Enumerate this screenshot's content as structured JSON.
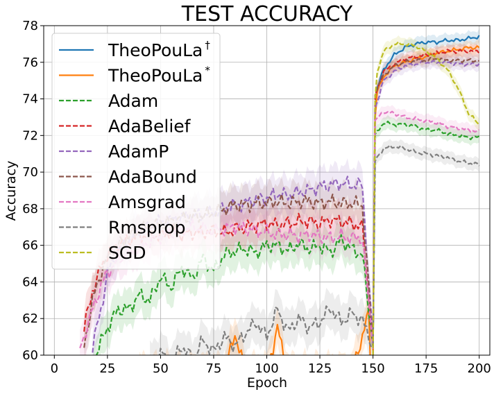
{
  "chart_data": {
    "type": "line",
    "title": "TEST ACCURACY",
    "xlabel": "Epoch",
    "ylabel": "Accuracy",
    "xlim": [
      -5,
      205
    ],
    "ylim": [
      60,
      78
    ],
    "xticks": [
      0,
      25,
      50,
      75,
      100,
      125,
      150,
      175,
      200
    ],
    "yticks": [
      60,
      62,
      64,
      66,
      68,
      70,
      72,
      74,
      76,
      78
    ],
    "grid": true,
    "legend_position": "upper-left",
    "series": [
      {
        "name": "TheoPouLa",
        "sup": "†",
        "color": "#1f77b4",
        "dash": "solid",
        "x": [
          150,
          151,
          152,
          155,
          160,
          165,
          170,
          175,
          180,
          185,
          190,
          195,
          200
        ],
        "y": [
          60,
          73.2,
          74.6,
          75.6,
          76.4,
          76.8,
          77.0,
          77.1,
          77.1,
          77.2,
          77.2,
          77.3,
          77.4
        ]
      },
      {
        "name": "TheoPouLa",
        "sup": "*",
        "color": "#ff7f0e",
        "dash": "solid",
        "x": [
          40,
          50,
          60,
          70,
          80,
          85,
          90,
          100,
          105,
          110,
          120,
          130,
          140,
          148,
          149,
          150,
          151,
          152,
          155,
          160,
          165,
          170,
          175,
          180,
          185,
          190,
          195,
          200
        ],
        "y": [
          59,
          59,
          59,
          59,
          59,
          61.2,
          59,
          59,
          61.5,
          59,
          59,
          59,
          59,
          62.3,
          59,
          60,
          73.0,
          74.4,
          75.2,
          75.8,
          76.0,
          76.2,
          76.3,
          76.5,
          76.6,
          76.7,
          76.8,
          76.8
        ]
      },
      {
        "name": "Adam",
        "sup": "",
        "color": "#2ca02c",
        "dash": "dashed",
        "x": [
          18,
          20,
          25,
          30,
          35,
          40,
          45,
          50,
          55,
          60,
          65,
          70,
          75,
          80,
          85,
          90,
          95,
          100,
          105,
          110,
          115,
          120,
          125,
          130,
          135,
          140,
          145,
          150,
          151,
          155,
          160,
          165,
          170,
          175,
          180,
          185,
          190,
          195,
          200
        ],
        "y": [
          59,
          60.2,
          61.5,
          62.5,
          62.5,
          63.3,
          63.0,
          64.3,
          63.7,
          64.8,
          64.2,
          65.3,
          64.6,
          65.5,
          65.7,
          65.8,
          65.6,
          66.0,
          66.0,
          65.7,
          66.1,
          65.8,
          66.0,
          65.6,
          66.3,
          65.8,
          65.5,
          60.5,
          72.0,
          72.7,
          72.6,
          72.6,
          72.5,
          72.3,
          72.3,
          72.1,
          72.0,
          71.9,
          71.9
        ]
      },
      {
        "name": "AdaBelief",
        "sup": "",
        "color": "#d62728",
        "dash": "dashed",
        "x": [
          14,
          18,
          22,
          25,
          30,
          35,
          40,
          45,
          50,
          55,
          60,
          65,
          70,
          75,
          80,
          85,
          90,
          95,
          100,
          105,
          110,
          115,
          120,
          125,
          130,
          135,
          140,
          145,
          150,
          151,
          155,
          160,
          165,
          170,
          175,
          180,
          185,
          190,
          195,
          200
        ],
        "y": [
          61.5,
          63.5,
          64.8,
          65.5,
          66.0,
          66.3,
          66.5,
          66.6,
          66.5,
          66.8,
          66.6,
          66.7,
          66.7,
          66.8,
          66.7,
          66.9,
          67.0,
          67.1,
          67.2,
          67.1,
          67.2,
          67.3,
          67.3,
          67.2,
          67.4,
          67.3,
          67.2,
          67.0,
          60.5,
          74.2,
          75.5,
          75.9,
          76.2,
          76.3,
          76.4,
          76.5,
          76.6,
          76.6,
          76.6,
          76.6
        ]
      },
      {
        "name": "AdamP",
        "sup": "",
        "color": "#9467bd",
        "dash": "dashed",
        "x": [
          18,
          22,
          25,
          30,
          35,
          40,
          45,
          50,
          55,
          60,
          65,
          70,
          75,
          80,
          85,
          90,
          95,
          100,
          105,
          110,
          115,
          120,
          125,
          130,
          135,
          140,
          145,
          150,
          151,
          155,
          160,
          165,
          170,
          175,
          180,
          185,
          190,
          195,
          200
        ],
        "y": [
          60.5,
          62.5,
          64.5,
          65.7,
          66.3,
          66.8,
          67.0,
          67.3,
          67.4,
          67.5,
          67.6,
          67.7,
          67.8,
          68.0,
          68.2,
          68.3,
          68.5,
          68.6,
          68.8,
          68.7,
          68.9,
          69.0,
          69.2,
          69.3,
          69.4,
          69.3,
          69.3,
          60.5,
          73.5,
          75.0,
          75.5,
          75.8,
          75.9,
          76.0,
          76.0,
          76.0,
          75.9,
          75.9,
          75.9
        ]
      },
      {
        "name": "AdaBound",
        "sup": "",
        "color": "#8c564b",
        "dash": "dashed",
        "x": [
          14,
          18,
          22,
          25,
          30,
          35,
          40,
          45,
          50,
          55,
          60,
          65,
          70,
          75,
          80,
          85,
          90,
          95,
          100,
          105,
          110,
          115,
          120,
          125,
          130,
          135,
          140,
          145,
          150,
          151,
          155,
          160,
          165,
          170,
          175,
          180,
          185,
          190,
          195,
          200
        ],
        "y": [
          60.5,
          63.0,
          64.5,
          65.3,
          66.0,
          66.5,
          66.8,
          67.0,
          67.2,
          67.3,
          67.5,
          67.6,
          67.6,
          67.8,
          68.0,
          68.2,
          68.2,
          68.3,
          68.3,
          68.4,
          68.3,
          68.4,
          68.4,
          68.3,
          68.4,
          68.3,
          68.3,
          68.2,
          60.5,
          74.3,
          75.3,
          75.8,
          76.0,
          76.1,
          76.1,
          76.2,
          76.1,
          76.1,
          76.1,
          76.1
        ]
      },
      {
        "name": "Amsgrad",
        "sup": "",
        "color": "#e377c2",
        "dash": "dashed",
        "x": [
          12,
          18,
          22,
          25,
          30,
          35,
          40,
          45,
          50,
          55,
          60,
          65,
          70,
          75,
          80,
          85,
          90,
          95,
          100,
          105,
          110,
          115,
          120,
          125,
          130,
          135,
          140,
          145,
          150,
          151,
          155,
          160,
          165,
          170,
          175,
          180,
          185,
          190,
          195,
          200
        ],
        "y": [
          60.3,
          62.5,
          63.8,
          64.5,
          65.2,
          65.6,
          65.9,
          66.2,
          66.5,
          66.7,
          66.9,
          67.0,
          66.9,
          66.8,
          66.9,
          67.0,
          66.9,
          66.8,
          66.7,
          66.6,
          66.6,
          66.5,
          66.6,
          66.5,
          66.4,
          66.5,
          66.4,
          66.4,
          60.5,
          72.8,
          73.3,
          73.2,
          73.0,
          72.9,
          72.8,
          72.7,
          72.5,
          72.4,
          72.3,
          72.2
        ]
      },
      {
        "name": "Rmsprop",
        "sup": "",
        "color": "#7f7f7f",
        "dash": "dashed",
        "x": [
          45,
          50,
          55,
          60,
          65,
          70,
          75,
          80,
          85,
          90,
          95,
          100,
          105,
          110,
          115,
          120,
          125,
          130,
          135,
          140,
          145,
          150,
          151,
          155,
          160,
          165,
          170,
          175,
          180,
          185,
          190,
          195,
          200
        ],
        "y": [
          59.5,
          60.2,
          59.5,
          60.5,
          59.8,
          60.8,
          60.2,
          61.0,
          60.5,
          61.2,
          61.8,
          61.0,
          62.5,
          61.3,
          62.0,
          61.5,
          61.8,
          62.6,
          61.8,
          62.3,
          61.9,
          60.5,
          70.6,
          71.3,
          71.4,
          71.3,
          71.1,
          71.0,
          70.9,
          70.8,
          70.6,
          70.5,
          70.4
        ]
      },
      {
        "name": "SGD",
        "sup": "",
        "color": "#bcbd22",
        "dash": "dashed",
        "x": [
          150,
          151,
          152,
          155,
          160,
          165,
          170,
          175,
          180,
          185,
          190,
          195,
          200
        ],
        "y": [
          60,
          74.0,
          75.5,
          76.6,
          77.0,
          77.0,
          76.9,
          76.6,
          76.2,
          75.6,
          74.6,
          73.2,
          72.6
        ]
      }
    ]
  }
}
